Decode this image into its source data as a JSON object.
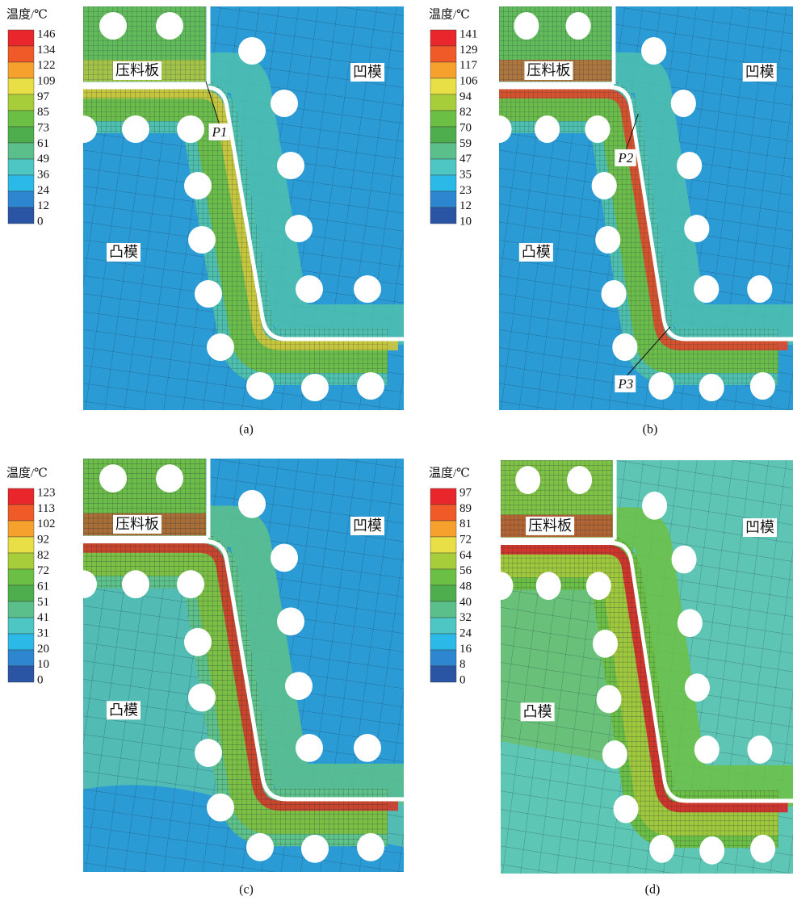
{
  "panels": [
    {
      "legend": {
        "title": "温度/℃",
        "levels": [
          146,
          134,
          122,
          109,
          97,
          85,
          73,
          61,
          49,
          36,
          24,
          12,
          0
        ]
      },
      "labels": {
        "blank_holder": "压料板",
        "die": "凹模",
        "punch": "凸模"
      },
      "points": [
        "P1"
      ],
      "caption": "(a)"
    },
    {
      "legend": {
        "title": "温度/℃",
        "levels": [
          141,
          129,
          117,
          106,
          94,
          82,
          70,
          59,
          47,
          35,
          23,
          12,
          10
        ]
      },
      "labels": {
        "blank_holder": "压料板",
        "die": "凹模",
        "punch": "凸模"
      },
      "points": [
        "P2",
        "P3"
      ],
      "caption": "(b)"
    },
    {
      "legend": {
        "title": "温度/℃",
        "levels": [
          123,
          113,
          102,
          92,
          82,
          72,
          61,
          51,
          41,
          31,
          20,
          10,
          0
        ]
      },
      "labels": {
        "blank_holder": "压料板",
        "die": "凹模",
        "punch": "凸模"
      },
      "points": [],
      "caption": "(c)"
    },
    {
      "legend": {
        "title": "温度/℃",
        "levels": [
          97,
          89,
          81,
          72,
          64,
          56,
          48,
          40,
          32,
          24,
          16,
          8,
          0
        ]
      },
      "labels": {
        "blank_holder": "压料板",
        "die": "凹模",
        "punch": "凸模"
      },
      "points": [],
      "caption": "(d)"
    }
  ]
}
